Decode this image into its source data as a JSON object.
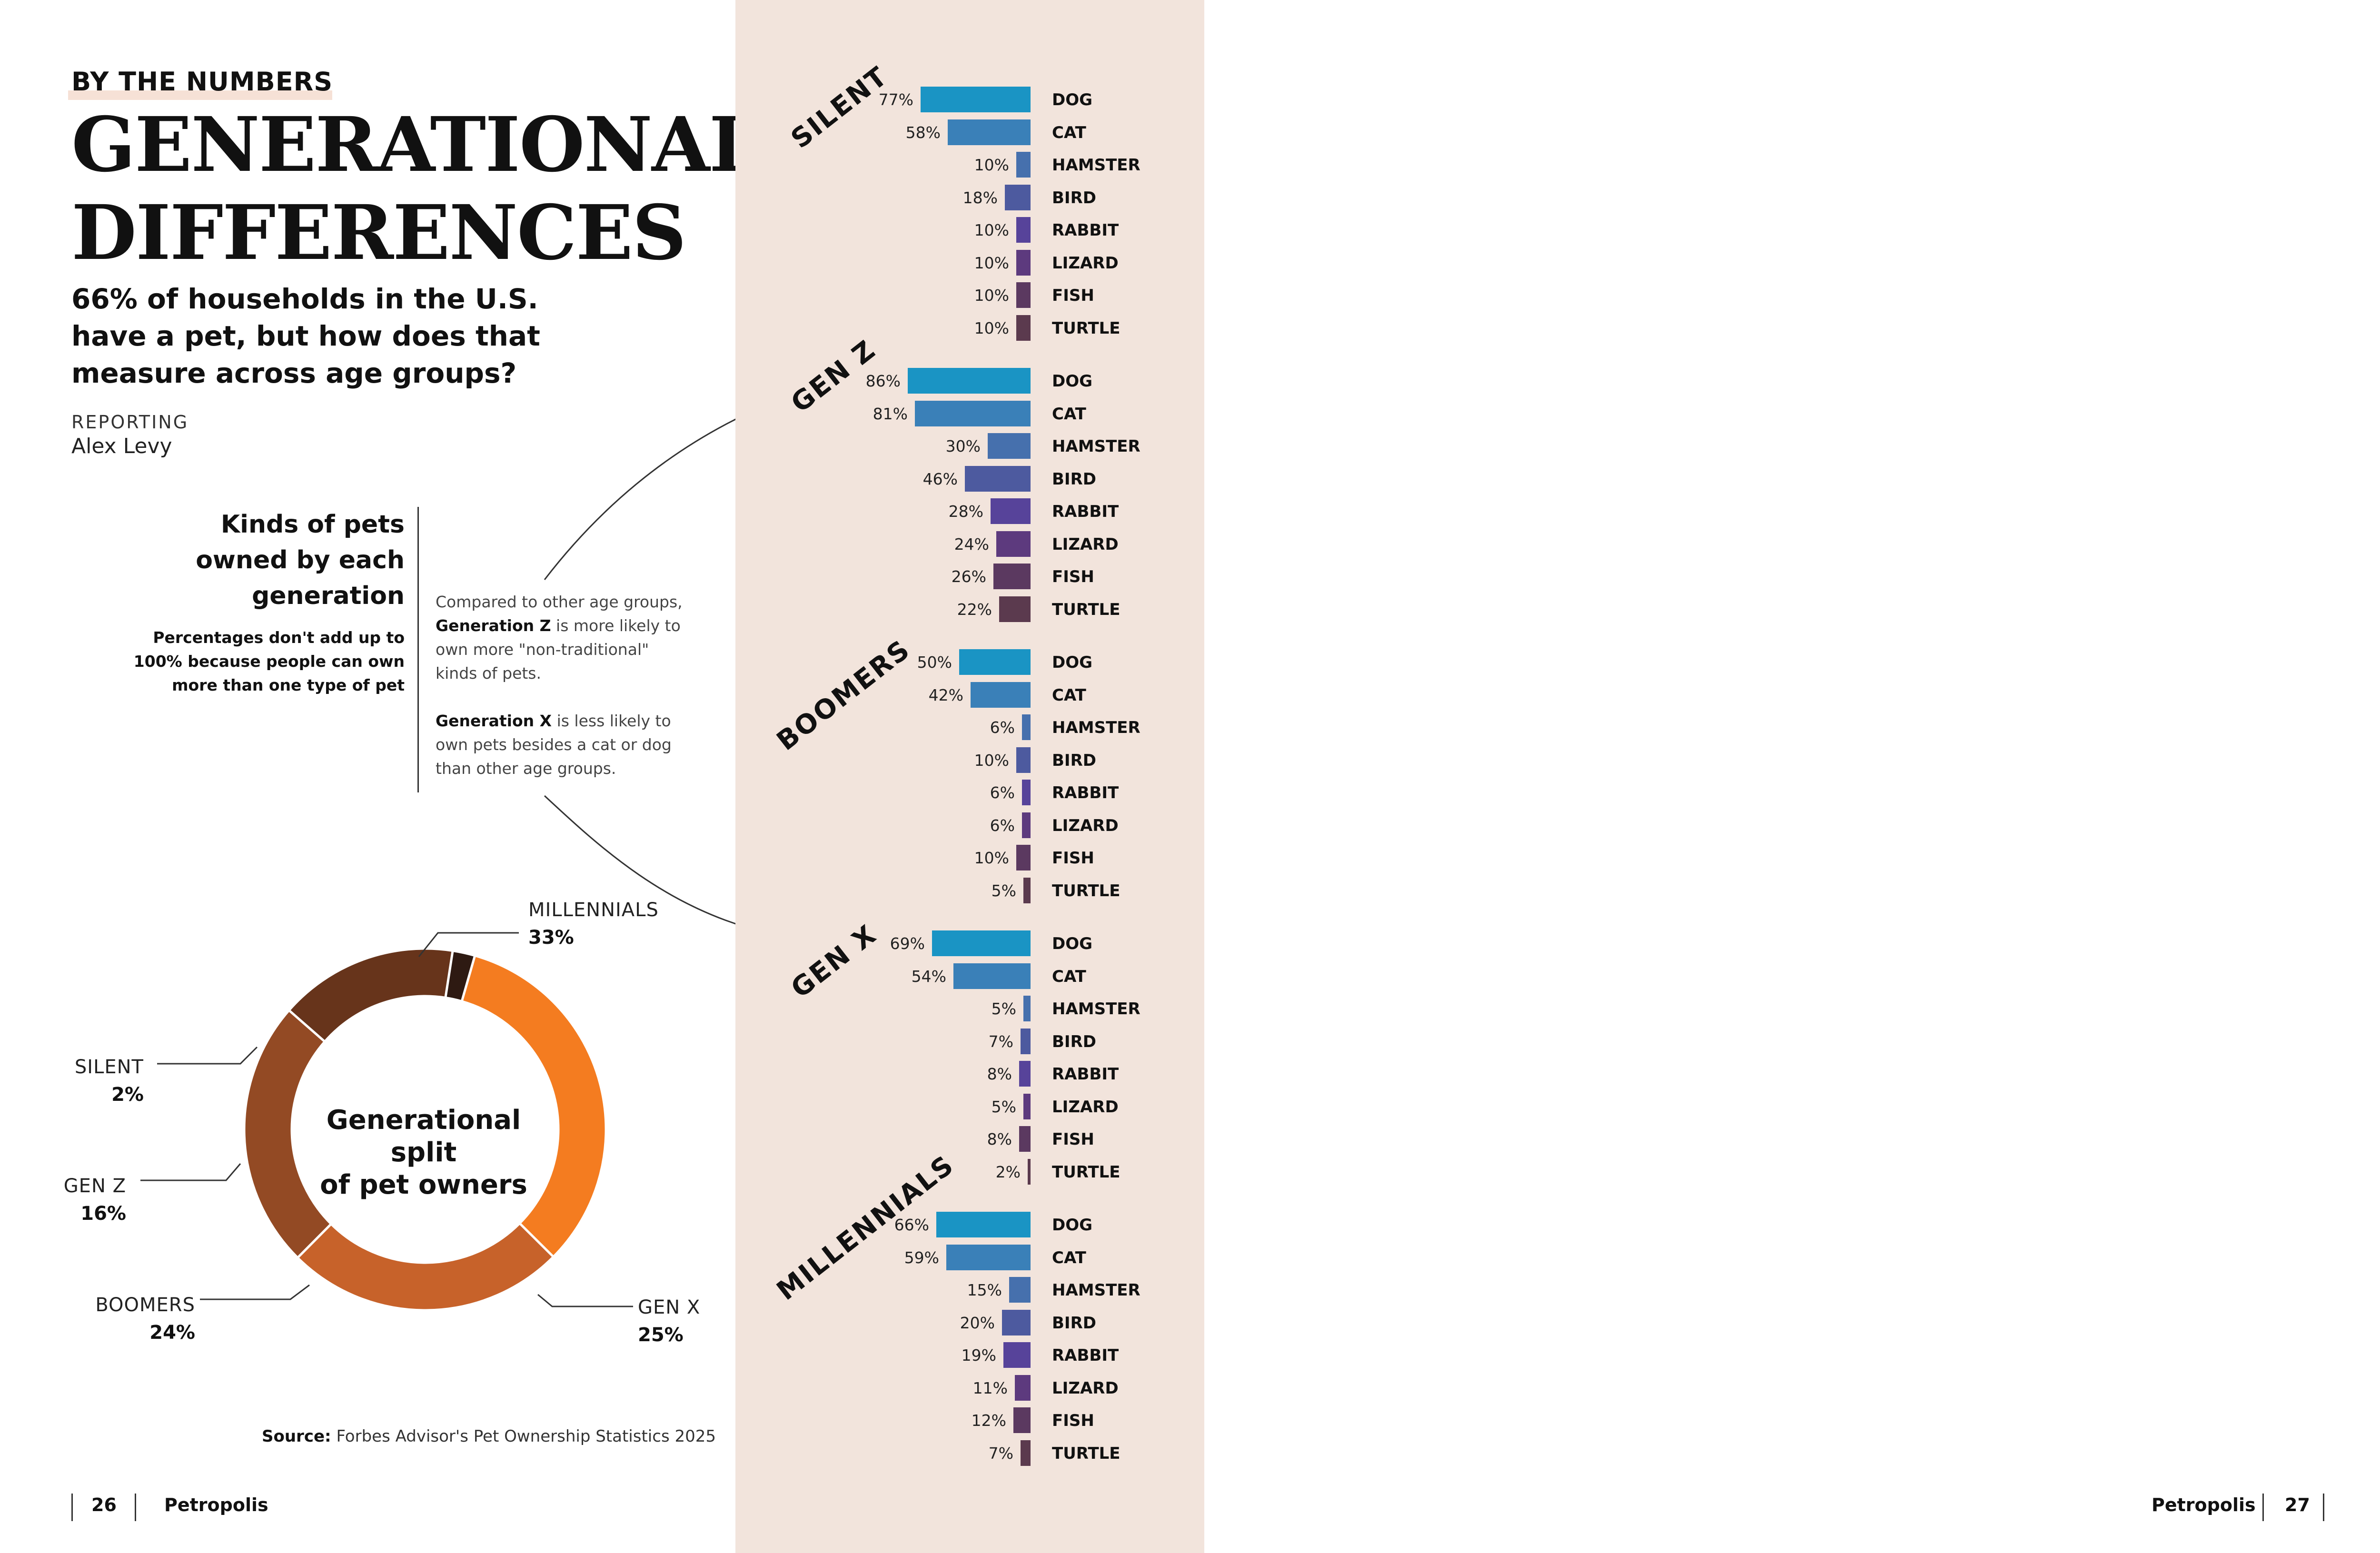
{
  "header": {
    "kicker": "BY THE NUMBERS",
    "title_line1": "GENERATIONAL",
    "title_line2": "DIFFERENCES",
    "subtitle_line1": "66% of households in the U.S.",
    "subtitle_line2": "have a pet, but how does that",
    "subtitle_line3": "measure across age groups?",
    "reporting_label": "REPORTING",
    "reporter": "Alex Levy"
  },
  "side": {
    "title_line1": "Kinds of pets",
    "title_line2": "owned by each",
    "title_line3": "generation",
    "note_line1": "Percentages don't add up to",
    "note_line2": "100% because people can own",
    "note_line3": "more than one type of pet"
  },
  "notes": {
    "genz_line1": "Compared to other age groups,",
    "genz_bold": "Generation Z",
    "genz_line2_rest": " is more likely to",
    "genz_line3": "own more \"non-traditional\"",
    "genz_line4": "kinds of pets.",
    "genx_bold": "Generation X",
    "genx_line1_rest": " is less likely to",
    "genx_line2": "own pets besides a cat or dog",
    "genx_line3": "than other age groups."
  },
  "donut": {
    "center_line1": "Generational split",
    "center_line2": "of pet owners"
  },
  "source": {
    "label": "Source:",
    "text": " Forbes Advisor's Pet Ownership Statistics 2025"
  },
  "footer": {
    "left_page": "26",
    "left_pub": "Petropolis",
    "right_pub": "Petropolis",
    "right_page": "27"
  },
  "colors": {
    "DOG": "#1a94c4",
    "CAT": "#3a80b8",
    "HAMSTER": "#4670ad",
    "BIRD": "#4d5a9f",
    "RABBIT": "#57439a",
    "LIZARD": "#5d3a7e",
    "FISH": "#5b3960",
    "TURTLE": "#5b3a4e",
    "panel": "#f2e4dc",
    "donut": {
      "MILLENNIALS": "#f47c20",
      "GEN X": "#c7622a",
      "BOOMERS": "#934a24",
      "GEN Z": "#67341b",
      "SILENT": "#2e1a12"
    }
  },
  "chart_data": [
    {
      "type": "bar",
      "title": "Kinds of pets owned by each generation",
      "categories": [
        "DOG",
        "CAT",
        "HAMSTER",
        "BIRD",
        "RABBIT",
        "LIZARD",
        "FISH",
        "TURTLE"
      ],
      "series": [
        {
          "name": "SILENT",
          "values": [
            77,
            58,
            10,
            18,
            10,
            10,
            10,
            10
          ]
        },
        {
          "name": "GEN Z",
          "values": [
            86,
            81,
            30,
            46,
            28,
            24,
            26,
            22
          ]
        },
        {
          "name": "BOOMERS",
          "values": [
            50,
            42,
            6,
            10,
            6,
            6,
            10,
            5
          ]
        },
        {
          "name": "GEN X",
          "values": [
            69,
            54,
            5,
            7,
            8,
            5,
            8,
            2
          ]
        },
        {
          "name": "MILLENNIALS",
          "values": [
            66,
            59,
            15,
            20,
            19,
            11,
            12,
            7
          ]
        }
      ],
      "value_suffix": "%"
    },
    {
      "type": "pie",
      "title": "Generational split of pet owners",
      "slices": [
        {
          "label": "MILLENNIALS",
          "value": 33
        },
        {
          "label": "GEN X",
          "value": 25
        },
        {
          "label": "BOOMERS",
          "value": 24
        },
        {
          "label": "GEN Z",
          "value": 16
        },
        {
          "label": "SILENT",
          "value": 2
        }
      ]
    }
  ]
}
